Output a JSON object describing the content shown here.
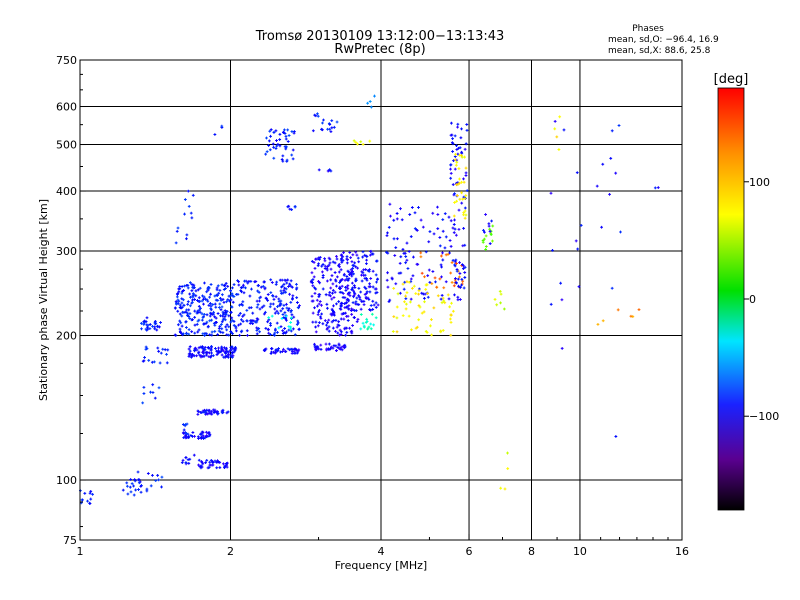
{
  "chart_data": {
    "type": "scatter",
    "title": "Tromsø 20130109 13:12:00−13:13:43",
    "subtitle": "RwPretec (8p)",
    "xlabel": "Frequency [MHz]",
    "ylabel": "Stationary phase Virtual Height [km]",
    "x_scale": "log",
    "y_scale": "log",
    "xlim": [
      1,
      16
    ],
    "ylim": [
      75,
      750
    ],
    "x_ticks": [
      1,
      2,
      4,
      6,
      8,
      10,
      16
    ],
    "y_ticks": [
      75,
      100,
      200,
      300,
      400,
      500,
      600,
      750
    ],
    "x_gridlines": [
      2,
      4,
      6,
      8,
      10
    ],
    "y_gridlines": [
      100,
      200,
      300,
      400,
      500,
      600
    ],
    "grid": true,
    "stats": {
      "heading": "Phases",
      "line1": "mean, sd,O: −96.4, 16.9",
      "line2": "mean, sd,X:  88.6, 25.8"
    },
    "colorbar": {
      "label": "[deg]",
      "min": -180,
      "max": 180,
      "ticks": [
        100,
        0,
        -100
      ],
      "tick_labels": [
        "100",
        "0",
        "−100"
      ]
    },
    "clusters": [
      {
        "x": [
          0.99,
          1.06
        ],
        "y": [
          88,
          96
        ],
        "phase": -100,
        "n": 12
      },
      {
        "x": [
          1.22,
          1.33
        ],
        "y": [
          92,
          104
        ],
        "phase": -100,
        "n": 22
      },
      {
        "x": [
          1.36,
          1.48
        ],
        "y": [
          92,
          104
        ],
        "phase": -100,
        "n": 10
      },
      {
        "x": [
          1.31,
          1.46
        ],
        "y": [
          205,
          218
        ],
        "phase": -102,
        "n": 28
      },
      {
        "x": [
          1.3,
          1.5
        ],
        "y": [
          175,
          190
        ],
        "phase": -100,
        "n": 18
      },
      {
        "x": [
          1.33,
          1.44
        ],
        "y": [
          140,
          160
        ],
        "phase": -95,
        "n": 8
      },
      {
        "x": [
          1.65,
          2.05
        ],
        "y": [
          180,
          190
        ],
        "phase": -110,
        "n": 110
      },
      {
        "x": [
          1.55,
          2.05
        ],
        "y": [
          200,
          258
        ],
        "phase": -100,
        "n": 260
      },
      {
        "x": [
          1.72,
          1.98
        ],
        "y": [
          137,
          140
        ],
        "phase": -110,
        "n": 40
      },
      {
        "x": [
          1.6,
          1.82
        ],
        "y": [
          122,
          126
        ],
        "phase": -110,
        "n": 40
      },
      {
        "x": [
          1.72,
          1.98
        ],
        "y": [
          106,
          110
        ],
        "phase": -110,
        "n": 40
      },
      {
        "x": [
          1.6,
          1.7
        ],
        "y": [
          107,
          113
        ],
        "phase": -105,
        "n": 10
      },
      {
        "x": [
          1.58,
          1.66
        ],
        "y": [
          123,
          131
        ],
        "phase": -100,
        "n": 8
      },
      {
        "x": [
          1.55,
          1.7
        ],
        "y": [
          300,
          420
        ],
        "phase": -100,
        "n": 12
      },
      {
        "x": [
          1.86,
          1.93
        ],
        "y": [
          500,
          550
        ],
        "phase": -100,
        "n": 3
      },
      {
        "x": [
          2.05,
          2.75
        ],
        "y": [
          200,
          262
        ],
        "phase": -105,
        "n": 200
      },
      {
        "x": [
          2.3,
          2.75
        ],
        "y": [
          183,
          188
        ],
        "phase": -110,
        "n": 40
      },
      {
        "x": [
          2.35,
          2.7
        ],
        "y": [
          460,
          540
        ],
        "phase": -100,
        "n": 45
      },
      {
        "x": [
          2.55,
          2.7
        ],
        "y": [
          365,
          372
        ],
        "phase": -100,
        "n": 6
      },
      {
        "x": [
          2.35,
          2.65
        ],
        "y": [
          205,
          220
        ],
        "phase": -30,
        "n": 10
      },
      {
        "x": [
          2.9,
          3.6
        ],
        "y": [
          200,
          295
        ],
        "phase": -115,
        "n": 200
      },
      {
        "x": [
          2.9,
          3.4
        ],
        "y": [
          186,
          192
        ],
        "phase": -115,
        "n": 40
      },
      {
        "x": [
          2.9,
          3.3
        ],
        "y": [
          525,
          580
        ],
        "phase": -100,
        "n": 18
      },
      {
        "x": [
          3.0,
          3.2
        ],
        "y": [
          440,
          445
        ],
        "phase": -110,
        "n": 5
      },
      {
        "x": [
          3.5,
          3.8
        ],
        "y": [
          500,
          510
        ],
        "phase": 100,
        "n": 6
      },
      {
        "x": [
          3.6,
          3.9
        ],
        "y": [
          590,
          640
        ],
        "phase": -60,
        "n": 4
      },
      {
        "x": [
          3.3,
          3.95
        ],
        "y": [
          225,
          300
        ],
        "phase": -110,
        "n": 140
      },
      {
        "x": [
          3.6,
          3.95
        ],
        "y": [
          205,
          225
        ],
        "phase": -20,
        "n": 15
      },
      {
        "x": [
          4.1,
          5.9
        ],
        "y": [
          235,
          380
        ],
        "phase": -110,
        "n": 120
      },
      {
        "x": [
          4.2,
          5.6
        ],
        "y": [
          200,
          260
        ],
        "phase": 110,
        "n": 60
      },
      {
        "x": [
          4.8,
          5.9
        ],
        "y": [
          250,
          300
        ],
        "phase": 150,
        "n": 25
      },
      {
        "x": [
          5.5,
          5.95
        ],
        "y": [
          380,
          560
        ],
        "phase": -110,
        "n": 45
      },
      {
        "x": [
          5.6,
          5.95
        ],
        "y": [
          350,
          480
        ],
        "phase": 110,
        "n": 30
      },
      {
        "x": [
          5.6,
          5.9
        ],
        "y": [
          250,
          290
        ],
        "phase": -110,
        "n": 20
      },
      {
        "x": [
          6.4,
          6.75
        ],
        "y": [
          300,
          360
        ],
        "phase": 60,
        "n": 12
      },
      {
        "x": [
          6.4,
          6.75
        ],
        "y": [
          300,
          360
        ],
        "phase": -110,
        "n": 8
      },
      {
        "x": [
          6.75,
          7.15
        ],
        "y": [
          220,
          255
        ],
        "phase": 90,
        "n": 6
      },
      {
        "x": [
          6.9,
          7.2
        ],
        "y": [
          95,
          135
        ],
        "phase": 100,
        "n": 4
      },
      {
        "x": [
          8.7,
          9.3
        ],
        "y": [
          170,
          610
        ],
        "phase": -110,
        "n": 8
      },
      {
        "x": [
          8.9,
          9.2
        ],
        "y": [
          450,
          610
        ],
        "phase": 110,
        "n": 4
      },
      {
        "x": [
          9.8,
          10.1
        ],
        "y": [
          205,
          570
        ],
        "phase": -110,
        "n": 5
      },
      {
        "x": [
          10.8,
          11.8
        ],
        "y": [
          330,
          500
        ],
        "phase": -110,
        "n": 6
      },
      {
        "x": [
          11.5,
          12.2
        ],
        "y": [
          115,
          640
        ],
        "phase": -100,
        "n": 5
      },
      {
        "x": [
          10.8,
          13.2
        ],
        "y": [
          205,
          250
        ],
        "phase": 140,
        "n": 6
      },
      {
        "x": [
          14.1,
          14.4
        ],
        "y": [
          400,
          410
        ],
        "phase": -110,
        "n": 2
      }
    ]
  }
}
